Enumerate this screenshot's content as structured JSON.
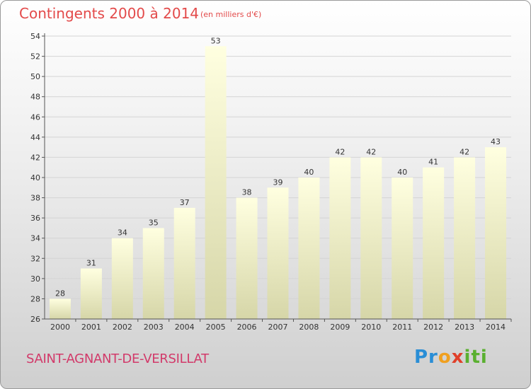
{
  "header": {
    "title": "Contingents 2000 à 2014",
    "subtitle": "(en milliers d'€)"
  },
  "footer": {
    "commune": "SAINT-AGNANT-DE-VERSILLAT",
    "logo_parts": [
      "Pr",
      "o",
      "x",
      "iti"
    ]
  },
  "colors": {
    "title": "#e34a4a",
    "commune": "#d23a6a",
    "bar_top": "#ffffe0",
    "bar_bottom": "#d6d6a8"
  },
  "chart_data": {
    "type": "bar",
    "title": "Contingents 2000 à 2014",
    "subtitle": "(en milliers d'€)",
    "xlabel": "",
    "ylabel": "",
    "categories": [
      "2000",
      "2001",
      "2002",
      "2003",
      "2004",
      "2005",
      "2006",
      "2007",
      "2008",
      "2009",
      "2010",
      "2011",
      "2012",
      "2013",
      "2014"
    ],
    "values": [
      28,
      31,
      34,
      35,
      37,
      53,
      38,
      39,
      40,
      42,
      42,
      40,
      41,
      42,
      43
    ],
    "ylim": [
      26,
      54
    ],
    "yticks": [
      26,
      28,
      30,
      32,
      34,
      36,
      38,
      40,
      42,
      44,
      46,
      48,
      50,
      52,
      54
    ],
    "grid": true,
    "legend": "none"
  }
}
